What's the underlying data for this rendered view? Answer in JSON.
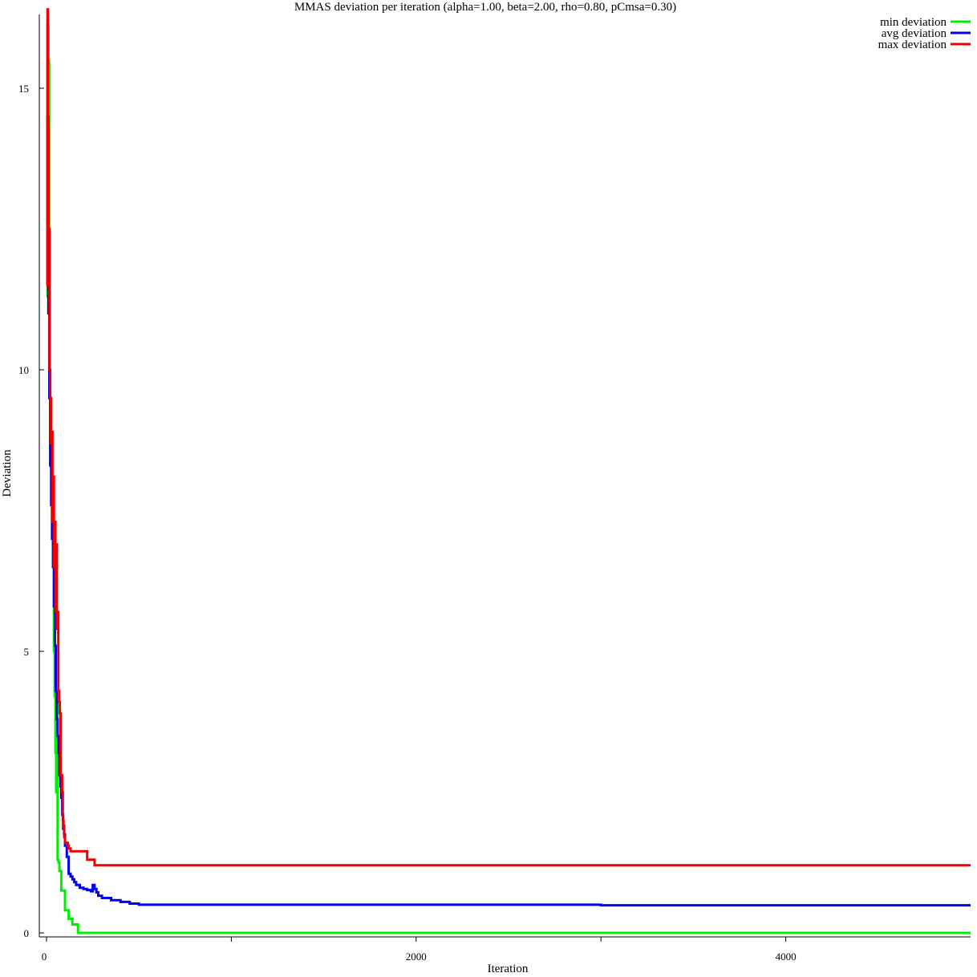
{
  "chart_data": {
    "type": "line",
    "title": "MMAS deviation per iteration (alpha=1.00, beta=2.00, rho=0.80, pCmsa=0.30)",
    "xlabel": "Iteration",
    "ylabel": "Deviation",
    "xlim": [
      0,
      5000
    ],
    "ylim": [
      0,
      16.3
    ],
    "x_ticks": [
      0,
      1000,
      2000,
      3000,
      4000
    ],
    "x_tick_labels": [
      "0",
      "",
      "2000",
      "",
      "4000"
    ],
    "y_ticks": [
      0,
      5,
      10,
      15
    ],
    "y_tick_labels": [
      "0",
      "5",
      "10",
      "15"
    ],
    "grid": false,
    "legend_position": "top-right",
    "colors": {
      "min": "#00ee00",
      "avg": "#0000ee",
      "max": "#ee0000"
    },
    "series": [
      {
        "name": "min deviation",
        "color": "#00ee00",
        "x": [
          0,
          5,
          10,
          14,
          18,
          22,
          26,
          30,
          35,
          40,
          44,
          48,
          52,
          56,
          60,
          65,
          70,
          80,
          85,
          90,
          100,
          105,
          115,
          120,
          125,
          140,
          150,
          160,
          170,
          5000
        ],
        "y": [
          11.3,
          16.1,
          15.5,
          11.4,
          9.5,
          8.4,
          8.6,
          7.0,
          6.5,
          5.0,
          4.2,
          3.2,
          2.5,
          4.1,
          1.3,
          1.25,
          1.1,
          0.75,
          0.75,
          0.75,
          0.4,
          0.4,
          0.4,
          0.25,
          0.25,
          0.15,
          0.15,
          0.15,
          0.0,
          0.0
        ]
      },
      {
        "name": "avg deviation",
        "color": "#0000ee",
        "x": [
          0,
          5,
          10,
          15,
          20,
          25,
          30,
          35,
          40,
          45,
          50,
          55,
          60,
          65,
          70,
          75,
          80,
          85,
          90,
          95,
          100,
          110,
          120,
          130,
          140,
          150,
          160,
          180,
          200,
          220,
          240,
          250,
          260,
          270,
          280,
          300,
          350,
          400,
          450,
          500,
          1000,
          2000,
          3000,
          4000,
          5000
        ],
        "y": [
          11.5,
          14.5,
          11.0,
          9.5,
          8.3,
          7.6,
          7.0,
          6.5,
          5.8,
          5.1,
          4.3,
          3.8,
          3.5,
          3.2,
          2.8,
          2.6,
          2.4,
          2.1,
          1.85,
          1.75,
          1.55,
          1.35,
          1.05,
          1.0,
          0.95,
          0.9,
          0.85,
          0.8,
          0.78,
          0.76,
          0.74,
          0.85,
          0.78,
          0.72,
          0.66,
          0.62,
          0.58,
          0.55,
          0.52,
          0.5,
          0.5,
          0.5,
          0.49,
          0.49,
          0.49
        ]
      },
      {
        "name": "max deviation",
        "color": "#ee0000",
        "x": [
          0,
          5,
          8,
          12,
          16,
          20,
          24,
          28,
          32,
          36,
          40,
          44,
          48,
          52,
          56,
          60,
          64,
          68,
          72,
          76,
          80,
          84,
          88,
          92,
          96,
          100,
          105,
          110,
          115,
          120,
          130,
          140,
          160,
          180,
          200,
          220,
          240,
          250,
          260,
          280,
          300,
          400,
          1000,
          2000,
          3000,
          4000,
          5000
        ],
        "y": [
          11.5,
          16.4,
          14.3,
          12.5,
          10.0,
          9.5,
          8.7,
          8.9,
          7.3,
          8.1,
          6.5,
          7.3,
          5.7,
          6.9,
          5.4,
          5.7,
          4.3,
          4.1,
          3.9,
          2.8,
          2.8,
          2.5,
          2.0,
          1.9,
          1.7,
          1.6,
          1.6,
          1.6,
          1.55,
          1.5,
          1.45,
          1.45,
          1.45,
          1.45,
          1.45,
          1.3,
          1.3,
          1.3,
          1.2,
          1.2,
          1.2,
          1.2,
          1.2,
          1.2,
          1.2,
          1.2,
          1.2
        ]
      }
    ]
  }
}
